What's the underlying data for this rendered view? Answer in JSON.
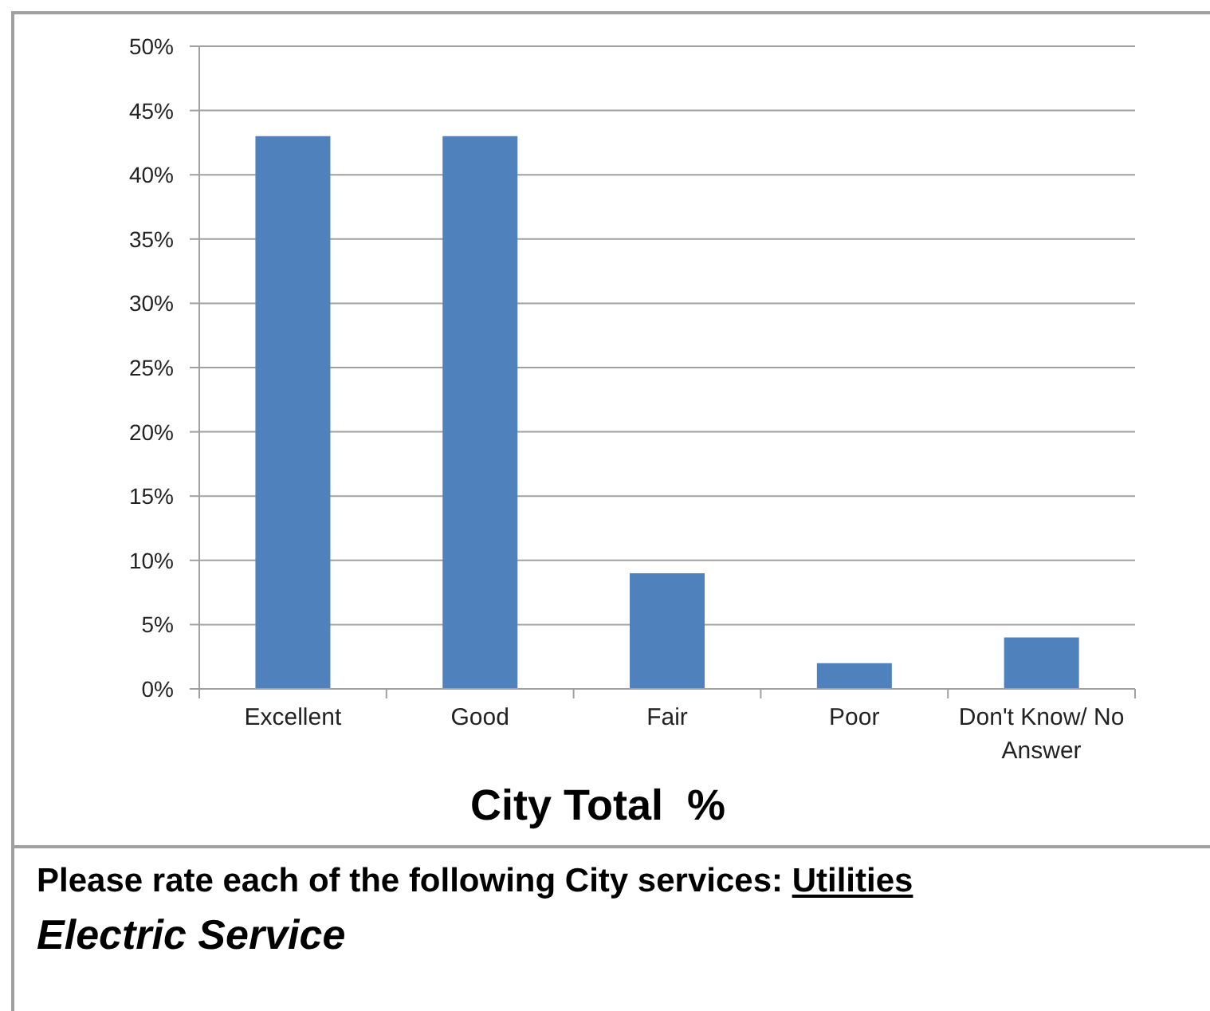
{
  "chart_data": {
    "type": "bar",
    "title": "Electric Service",
    "subtitle": "Please rate each of the following City services: Utilities",
    "xlabel": "City Total  %",
    "categories": [
      "Excellent",
      "Good",
      "Fair",
      "Poor",
      "Don't Know/ No Answer"
    ],
    "values": [
      43,
      43,
      9,
      2,
      4
    ],
    "color": "#4f81bd",
    "ylim": [
      0,
      50
    ],
    "yticks": [
      {
        "value": 0,
        "label": "0%"
      },
      {
        "value": 5,
        "label": "5%"
      },
      {
        "value": 10,
        "label": "10%"
      },
      {
        "value": 15,
        "label": "15%"
      },
      {
        "value": 20,
        "label": "20%"
      },
      {
        "value": 25,
        "label": "25%"
      },
      {
        "value": 30,
        "label": "30%"
      },
      {
        "value": 35,
        "label": "35%"
      },
      {
        "value": 40,
        "label": "40%"
      },
      {
        "value": 45,
        "label": "45%"
      },
      {
        "value": 50,
        "label": "50%"
      }
    ],
    "grid": "y"
  }
}
